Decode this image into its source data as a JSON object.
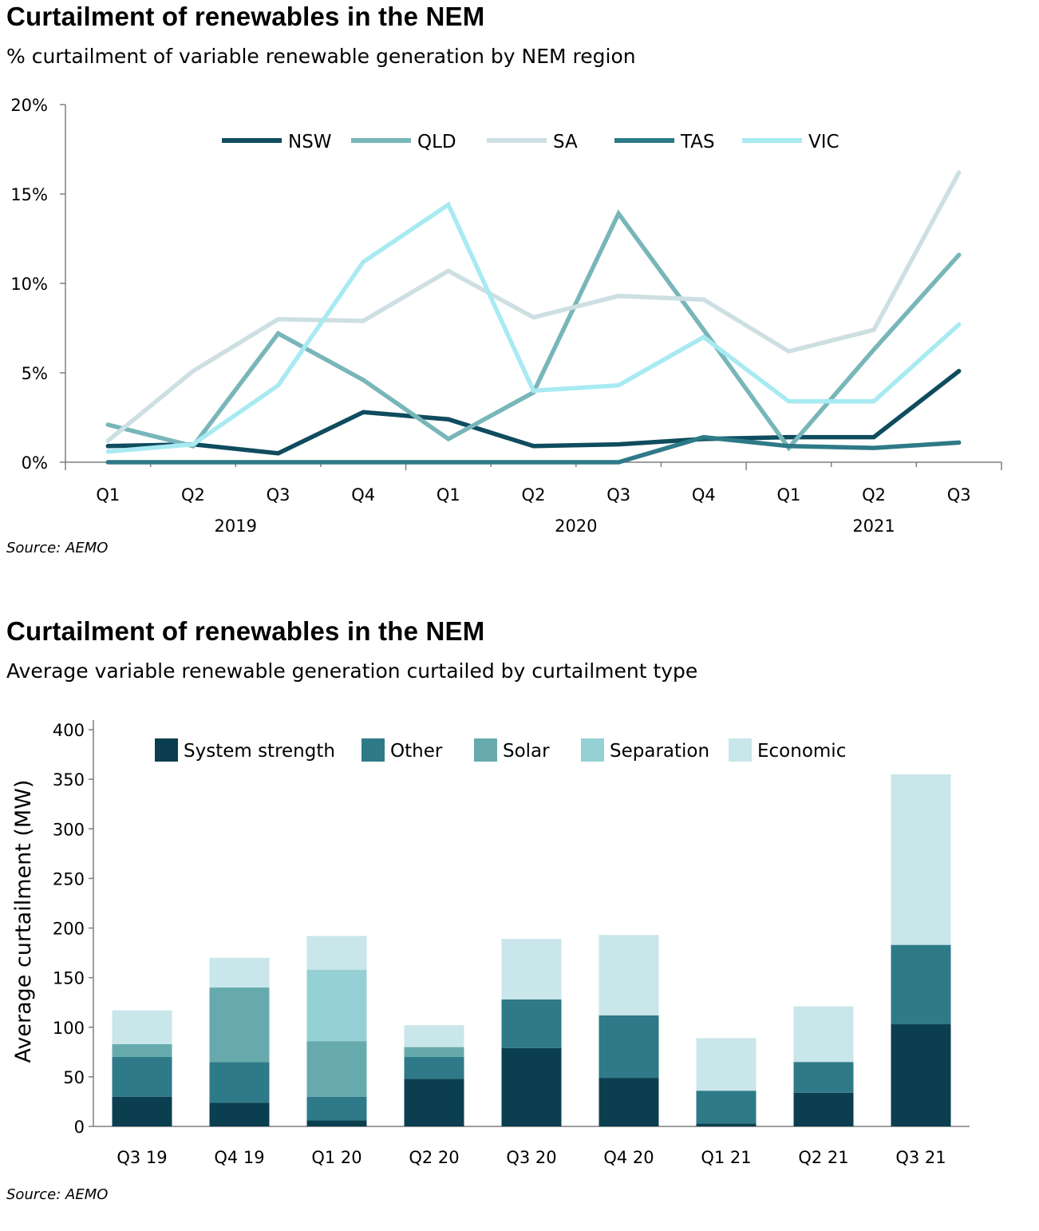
{
  "charts": {
    "line": {
      "title": "Curtailment of renewables in the NEM",
      "subtitle": "% curtailment of variable renewable generation by NEM region",
      "source": "Source: AEMO"
    },
    "bar": {
      "title": "Curtailment of renewables in the NEM",
      "subtitle": "Average variable renewable generation curtailed by curtailment type",
      "source": "Source: AEMO"
    }
  },
  "chart_data": [
    {
      "type": "line",
      "title": "Curtailment of renewables in the NEM",
      "subtitle": "% curtailment of variable renewable generation by NEM region",
      "x": [
        "Q1",
        "Q2",
        "Q3",
        "Q4",
        "Q1",
        "Q2",
        "Q3",
        "Q4",
        "Q1",
        "Q2",
        "Q3"
      ],
      "year_groups": [
        {
          "label": "2019",
          "start": 0,
          "end": 3
        },
        {
          "label": "2020",
          "start": 4,
          "end": 7
        },
        {
          "label": "2021",
          "start": 8,
          "end": 10
        }
      ],
      "yticks": [
        "0%",
        "5%",
        "10%",
        "15%",
        "20%"
      ],
      "ylim": [
        0,
        20
      ],
      "grid": false,
      "legend_position": "top",
      "series": [
        {
          "name": "NSW",
          "color": "#0f4c5e",
          "values": [
            0.9,
            1.0,
            0.5,
            2.8,
            2.4,
            0.9,
            1.0,
            1.3,
            1.4,
            1.4,
            5.1
          ]
        },
        {
          "name": "QLD",
          "color": "#78b6b9",
          "values": [
            2.1,
            0.9,
            7.2,
            4.6,
            1.3,
            3.9,
            13.9,
            7.4,
            0.8,
            6.3,
            11.6
          ]
        },
        {
          "name": "SA",
          "color": "#cddfe2",
          "values": [
            1.2,
            5.1,
            8.0,
            7.9,
            10.7,
            8.1,
            9.3,
            9.1,
            6.2,
            7.4,
            16.2
          ]
        },
        {
          "name": "TAS",
          "color": "#2e7a87",
          "values": [
            0.0,
            0.0,
            0.0,
            0.0,
            0.0,
            0.0,
            0.0,
            1.4,
            0.9,
            0.8,
            1.1
          ]
        },
        {
          "name": "VIC",
          "color": "#a8eaf2",
          "values": [
            0.6,
            1.0,
            4.3,
            11.2,
            14.4,
            4.0,
            4.3,
            7.0,
            3.4,
            3.4,
            7.7
          ]
        }
      ],
      "source": "Source: AEMO"
    },
    {
      "type": "bar",
      "stacked": true,
      "title": "Curtailment of renewables in the NEM",
      "subtitle": "Average variable renewable generation curtailed by curtailment type",
      "ylabel": "Average curtailment (MW)",
      "categories": [
        "Q3 19",
        "Q4 19",
        "Q1 20",
        "Q2 20",
        "Q3 20",
        "Q4 20",
        "Q1 21",
        "Q2 21",
        "Q3 21"
      ],
      "yticks": [
        "0",
        "50",
        "100",
        "150",
        "200",
        "250",
        "300",
        "350",
        "400"
      ],
      "ylim": [
        0,
        400
      ],
      "grid": false,
      "legend_position": "top",
      "series": [
        {
          "name": "System strength",
          "color": "#0b3f4f",
          "values": [
            30,
            24,
            6,
            48,
            79,
            49,
            3,
            34,
            103
          ]
        },
        {
          "name": "Other",
          "color": "#2e7a88",
          "values": [
            40,
            41,
            24,
            22,
            49,
            63,
            33,
            31,
            80
          ]
        },
        {
          "name": "Solar",
          "color": "#67aaae",
          "values": [
            13,
            75,
            56,
            10,
            0,
            0,
            0,
            0,
            0
          ]
        },
        {
          "name": "Separation",
          "color": "#95d1d4",
          "values": [
            0,
            0,
            72,
            0,
            0,
            0,
            0,
            0,
            0
          ]
        },
        {
          "name": "Economic",
          "color": "#c9e6ea",
          "values": [
            34,
            30,
            34,
            22,
            61,
            81,
            53,
            56,
            172
          ]
        }
      ],
      "source": "Source: AEMO"
    }
  ]
}
